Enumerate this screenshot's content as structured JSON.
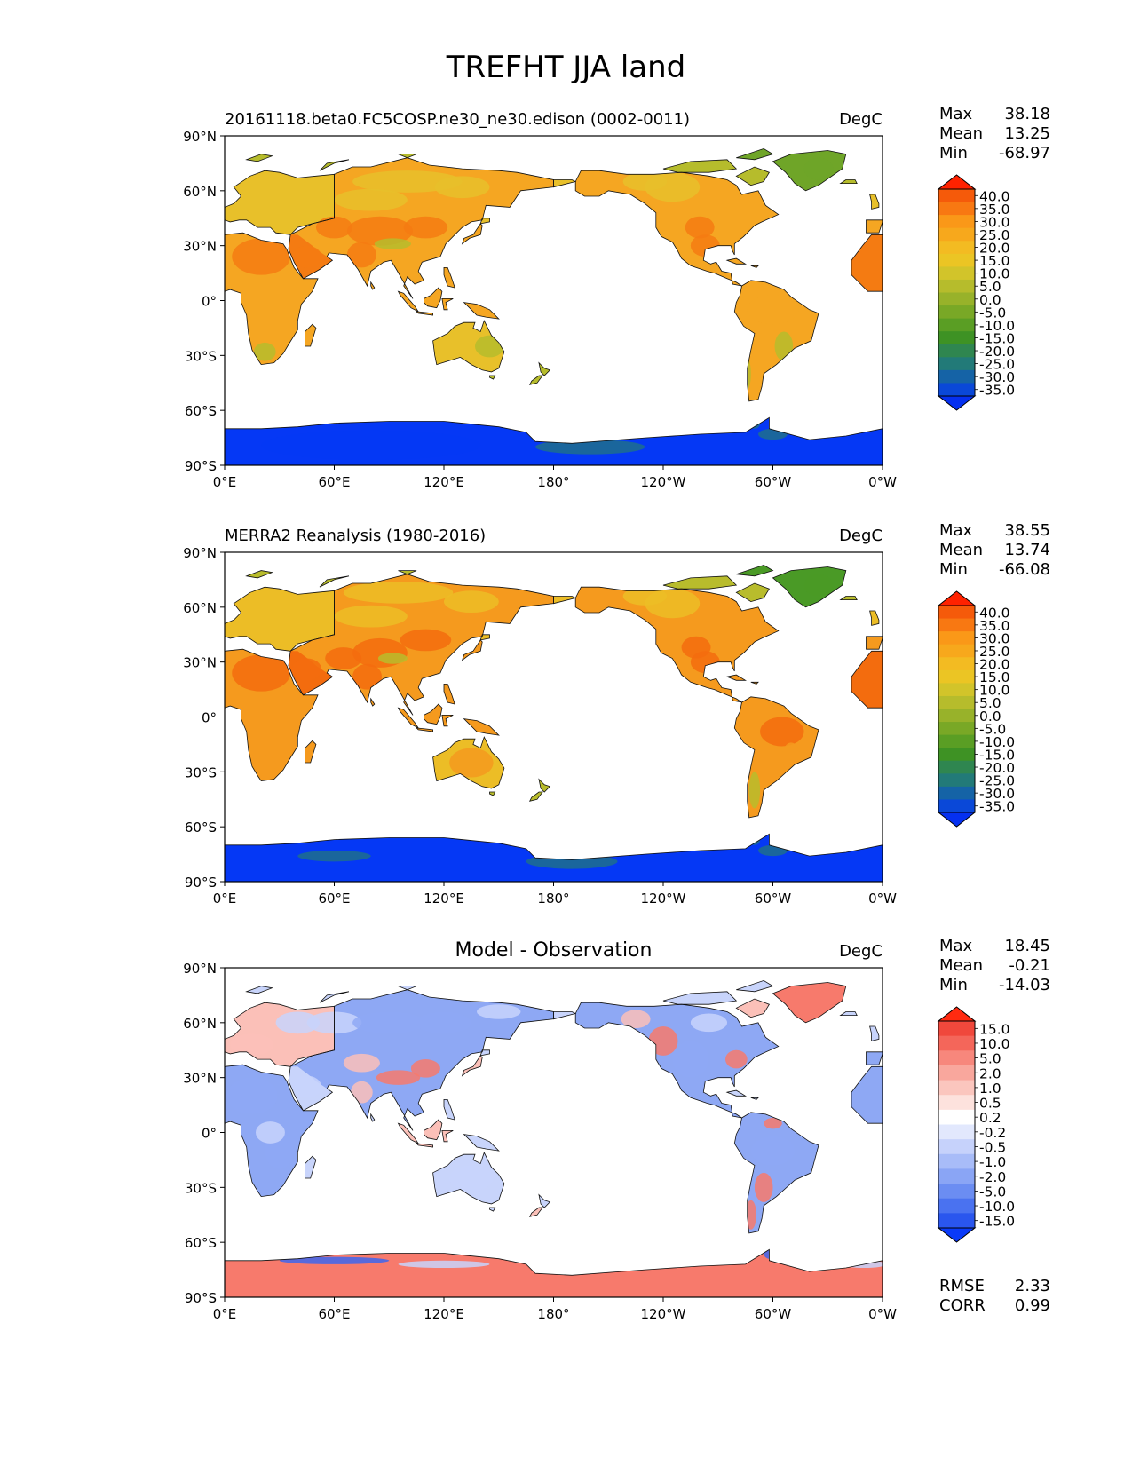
{
  "figure": {
    "title": "TREFHT JJA land"
  },
  "axes": {
    "lat_ticks": [
      "90°N",
      "60°N",
      "30°N",
      "0°",
      "30°S",
      "60°S",
      "90°S"
    ],
    "lon_ticks": [
      "0°E",
      "60°E",
      "120°E",
      "180°",
      "120°W",
      "60°W",
      "0°W"
    ]
  },
  "chart_data": [
    {
      "type": "heatmap",
      "title": "",
      "left_title": "20161118.beta0.FC5COSP.ne30_ne30.edison (0002-0011)",
      "units": "DegC",
      "stats": {
        "labels": [
          "Max",
          "Mean",
          "Min"
        ],
        "values": [
          "38.18",
          "13.25",
          "-68.97"
        ]
      },
      "colorbar": {
        "levels": [
          "40.0",
          "35.0",
          "30.0",
          "25.0",
          "20.0",
          "15.0",
          "10.0",
          "5.0",
          "0.0",
          "-5.0",
          "-10.0",
          "-15.0",
          "-20.0",
          "-25.0",
          "-30.0",
          "-35.0"
        ],
        "colors": [
          "#f55a0a",
          "#f87812",
          "#fa9818",
          "#f7a81c",
          "#f3bb22",
          "#ebc524",
          "#d2c42a",
          "#b6bc2c",
          "#98b22a",
          "#79a826",
          "#5a9e24",
          "#3e9224",
          "#2f8650",
          "#227a78",
          "#1563a6",
          "#0a48d8"
        ],
        "top_color": "#ff2200",
        "bottom_color": "#0530f0"
      },
      "palette": {
        "ocean": "#ffffff",
        "hot": "#f47b12",
        "warm": "#f5a622",
        "mild": "#e8c02a",
        "cool": "#b6bc2c",
        "cold": "#6fa528",
        "ice": "#0538f5",
        "ice_edge": "#1f6e8c"
      },
      "x": [
        "0°E",
        "60°E",
        "120°E",
        "180°",
        "120°W",
        "60°W",
        "0°W"
      ],
      "y": [
        "90°N",
        "60°N",
        "30°N",
        "0°",
        "30°S",
        "60°S",
        "90°S"
      ]
    },
    {
      "type": "heatmap",
      "title": "",
      "left_title": "MERRA2 Reanalysis (1980-2016)",
      "units": "DegC",
      "stats": {
        "labels": [
          "Max",
          "Mean",
          "Min"
        ],
        "values": [
          "38.55",
          "13.74",
          "-66.08"
        ]
      },
      "colorbar": {
        "levels": [
          "40.0",
          "35.0",
          "30.0",
          "25.0",
          "20.0",
          "15.0",
          "10.0",
          "5.0",
          "0.0",
          "-5.0",
          "-10.0",
          "-15.0",
          "-20.0",
          "-25.0",
          "-30.0",
          "-35.0"
        ],
        "colors": [
          "#f55a0a",
          "#f87812",
          "#fa9818",
          "#f7a81c",
          "#f3bb22",
          "#ebc524",
          "#d2c42a",
          "#b6bc2c",
          "#98b22a",
          "#79a826",
          "#5a9e24",
          "#3e9224",
          "#2f8650",
          "#227a78",
          "#1563a6",
          "#0a48d8"
        ],
        "top_color": "#ff2200",
        "bottom_color": "#0530f0"
      },
      "palette": {
        "ocean": "#ffffff",
        "hot": "#f36c0e",
        "warm": "#f59a1e",
        "mild": "#ecbd26",
        "cool": "#b8bc2c",
        "cold": "#4a9a26",
        "ice": "#0538f5",
        "ice_edge": "#1f6e8c"
      },
      "x": [
        "0°E",
        "60°E",
        "120°E",
        "180°",
        "120°W",
        "60°W",
        "0°W"
      ],
      "y": [
        "90°N",
        "60°N",
        "30°N",
        "0°",
        "30°S",
        "60°S",
        "90°S"
      ]
    },
    {
      "type": "heatmap",
      "title": "Model - Observation",
      "left_title": "",
      "units": "DegC",
      "stats": {
        "labels": [
          "Max",
          "Mean",
          "Min"
        ],
        "values": [
          "18.45",
          "-0.21",
          "-14.03"
        ]
      },
      "colorbar": {
        "levels": [
          "15.0",
          "10.0",
          "5.0",
          "2.0",
          "1.0",
          "0.5",
          "0.2",
          "-0.2",
          "-0.5",
          "-1.0",
          "-2.0",
          "-5.0",
          "-10.0",
          "-15.0"
        ],
        "colors": [
          "#f0483c",
          "#f4665a",
          "#f7877c",
          "#f9a79d",
          "#fbc6be",
          "#fde2dd",
          "#ffffff",
          "#e2e8fd",
          "#c6d2fb",
          "#a8bcf8",
          "#8aa5f5",
          "#6b8df2",
          "#4a72f0",
          "#2a56ee"
        ],
        "top_color": "#ff2a10",
        "bottom_color": "#0a3af8"
      },
      "palette": {
        "ocean": "#ffffff",
        "pos": "#f77a6c",
        "pos_light": "#fbc0b8",
        "neg": "#8ea8f4",
        "neg_light": "#c8d4fb",
        "neg_strong": "#3d66ee"
      },
      "x": [
        "0°E",
        "60°E",
        "120°E",
        "180°",
        "120°W",
        "60°W",
        "0°W"
      ],
      "y": [
        "90°N",
        "60°N",
        "30°N",
        "0°",
        "30°S",
        "60°S",
        "90°S"
      ],
      "extra_stats": {
        "labels": [
          "RMSE",
          "CORR"
        ],
        "values": [
          "2.33",
          "0.99"
        ]
      }
    }
  ]
}
